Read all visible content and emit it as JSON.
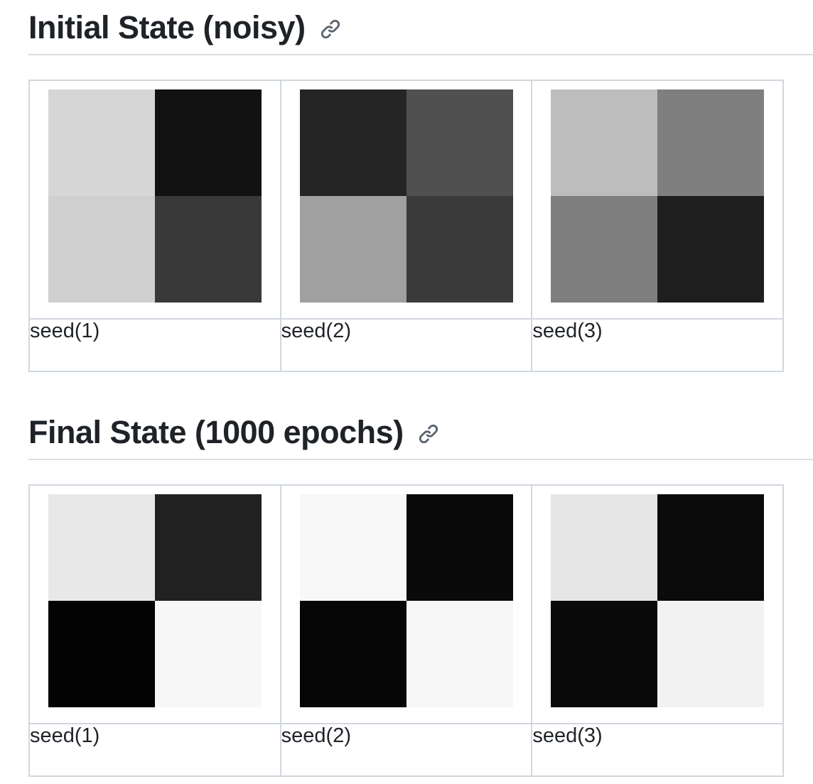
{
  "sections": [
    {
      "title": "Initial State (noisy)",
      "link_icon": "link-icon",
      "items": [
        {
          "label": "seed(1)",
          "cells": [
            "#d6d6d6",
            "#121212",
            "#cfcfcf",
            "#393939"
          ]
        },
        {
          "label": "seed(2)",
          "cells": [
            "#252525",
            "#505050",
            "#a0a0a0",
            "#3a3a3a"
          ]
        },
        {
          "label": "seed(3)",
          "cells": [
            "#bdbdbd",
            "#7f7f7f",
            "#7f7f7f",
            "#1e1e1e"
          ]
        }
      ]
    },
    {
      "title": "Final State (1000 epochs)",
      "link_icon": "link-icon",
      "items": [
        {
          "label": "seed(1)",
          "cells": [
            "#e8e8e8",
            "#212121",
            "#030303",
            "#f7f7f7"
          ]
        },
        {
          "label": "seed(2)",
          "cells": [
            "#f8f8f8",
            "#0a0a0a",
            "#060606",
            "#f7f7f7"
          ]
        },
        {
          "label": "seed(3)",
          "cells": [
            "#e6e6e6",
            "#0b0b0b",
            "#0a0a0a",
            "#f2f2f2"
          ]
        }
      ]
    }
  ]
}
